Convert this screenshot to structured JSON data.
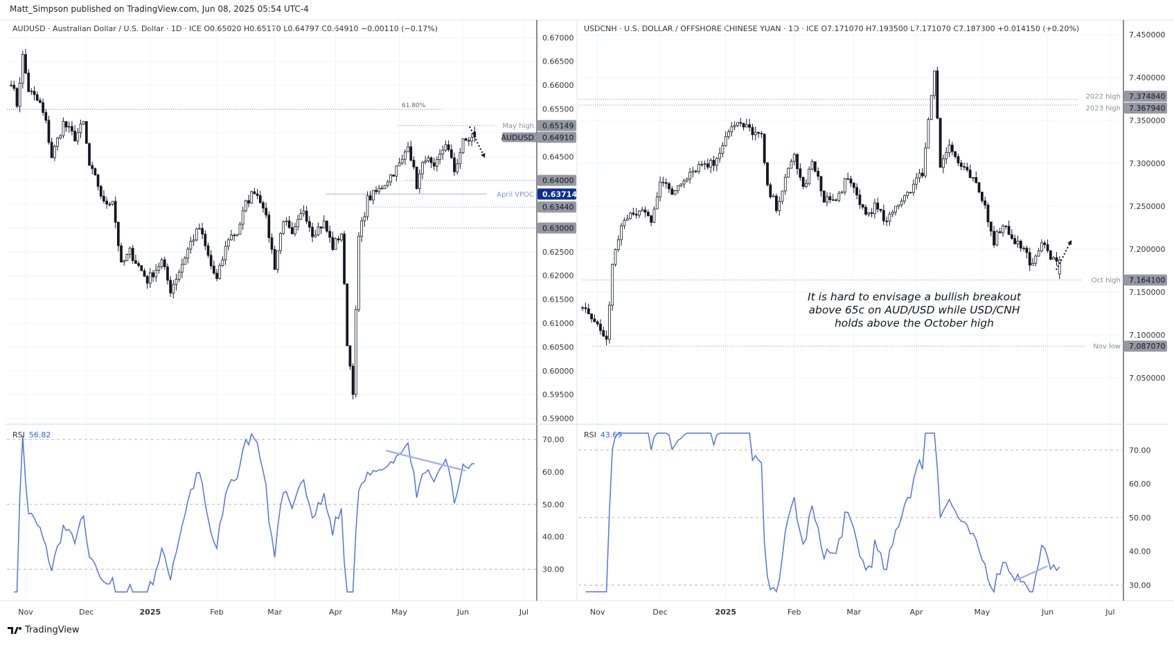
{
  "header": {
    "published": "Matt_Simpson published on TradingView.com, Jun 08, 2025 05:54 UTC-4"
  },
  "footer": {
    "brand": "TradingView",
    "logo_icon": "tradingview-logo-icon"
  },
  "candle_colors": {
    "up_fill": "#ffffff",
    "down_fill": "#131722",
    "border": "#131722"
  },
  "rsi_color": "#4f73e3",
  "trendline_color": "#a9b4ea",
  "left": {
    "legend": "AUDUSD · Australian Dollar / U.S. Dollar · 1D · ICE  O0.65020  H0.65170  L0.64797  C0.64910  −0.00110 (−0.17%)",
    "price_ticks": [
      "0.67000",
      "0.66500",
      "0.66000",
      "0.65500",
      "0.65000",
      "0.64500",
      "0.64000",
      "0.63500",
      "0.63000",
      "0.62500",
      "0.62000",
      "0.61500",
      "0.61000",
      "0.60500",
      "0.60000",
      "0.59500",
      "0.59000"
    ],
    "price_range": [
      0.5895,
      0.6715
    ],
    "labels": [
      {
        "text": "0.65149",
        "value": 0.65149,
        "tag": "May high",
        "style": "grey"
      },
      {
        "text": "0.64910",
        "value": 0.6491,
        "tag": "AUDUSD",
        "style": "grey"
      },
      {
        "text": "0.64000",
        "value": 0.64,
        "tag": "",
        "style": "grey"
      },
      {
        "text": "0.63714",
        "value": 0.63714,
        "tag": "April VPOC",
        "style": "blue"
      },
      {
        "text": "0.63440",
        "value": 0.6344,
        "tag": "",
        "style": "grey"
      },
      {
        "text": "0.63000",
        "value": 0.63,
        "tag": "",
        "style": "grey"
      }
    ],
    "fib": {
      "text": "61.80%",
      "value": 0.6549
    },
    "rsi": {
      "label": "RSI",
      "value": "56.82",
      "ticks": [
        "70.00",
        "60.00",
        "50.00",
        "40.00",
        "30.00"
      ],
      "range": [
        22,
        73
      ]
    },
    "time_labels": [
      "Nov",
      "Dec",
      "2025",
      "Feb",
      "Mar",
      "Apr",
      "May",
      "Jun",
      "Jul"
    ],
    "path": [
      [
        "2024-10-25",
        0.661
      ],
      [
        "2024-10-29",
        0.656
      ],
      [
        "2024-10-31",
        0.666
      ],
      [
        "2024-11-04",
        0.659
      ],
      [
        "2024-11-08",
        0.656
      ],
      [
        "2024-11-12",
        0.652
      ],
      [
        "2024-11-14",
        0.645
      ],
      [
        "2024-11-20",
        0.652
      ],
      [
        "2024-11-26",
        0.649
      ],
      [
        "2024-11-29",
        0.652
      ],
      [
        "2024-12-03",
        0.643
      ],
      [
        "2024-12-06",
        0.639
      ],
      [
        "2024-12-10",
        0.635
      ],
      [
        "2024-12-13",
        0.636
      ],
      [
        "2024-12-18",
        0.622
      ],
      [
        "2024-12-23",
        0.625
      ],
      [
        "2024-12-31",
        0.619
      ],
      [
        "2025-01-07",
        0.623
      ],
      [
        "2025-01-10",
        0.617
      ],
      [
        "2025-01-15",
        0.621
      ],
      [
        "2025-01-21",
        0.627
      ],
      [
        "2025-01-24",
        0.63
      ],
      [
        "2025-01-30",
        0.622
      ],
      [
        "2025-02-03",
        0.619
      ],
      [
        "2025-02-07",
        0.628
      ],
      [
        "2025-02-12",
        0.629
      ],
      [
        "2025-02-17",
        0.635
      ],
      [
        "2025-02-20",
        0.638
      ],
      [
        "2025-02-25",
        0.635
      ],
      [
        "2025-03-03",
        0.622
      ],
      [
        "2025-03-06",
        0.632
      ],
      [
        "2025-03-11",
        0.628
      ],
      [
        "2025-03-17",
        0.634
      ],
      [
        "2025-03-20",
        0.629
      ],
      [
        "2025-03-26",
        0.631
      ],
      [
        "2025-03-31",
        0.626
      ],
      [
        "2025-04-03",
        0.629
      ],
      [
        "2025-04-07",
        0.606
      ],
      [
        "2025-04-09",
        0.596
      ],
      [
        "2025-04-11",
        0.628
      ],
      [
        "2025-04-16",
        0.636
      ],
      [
        "2025-04-22",
        0.638
      ],
      [
        "2025-04-28",
        0.641
      ],
      [
        "2025-05-02",
        0.644
      ],
      [
        "2025-05-06",
        0.648
      ],
      [
        "2025-05-09",
        0.639
      ],
      [
        "2025-05-14",
        0.645
      ],
      [
        "2025-05-19",
        0.642
      ],
      [
        "2025-05-23",
        0.648
      ],
      [
        "2025-05-28",
        0.642
      ],
      [
        "2025-06-02",
        0.648
      ],
      [
        "2025-06-06",
        0.6491
      ]
    ]
  },
  "right": {
    "legend": "USDCNH · U.S. DOLLAR / OFFSHORE CHINESE YUAN · 1D · ICE  O7.171070  H7.193500  L7.171070  C7.187300  +0.014150 (+0.20%)",
    "price_ticks": [
      "7.450000",
      "7.400000",
      "7.350000",
      "7.300000",
      "7.250000",
      "7.200000",
      "7.150000",
      "7.100000",
      "7.050000"
    ],
    "price_range": [
      7.0,
      7.455
    ],
    "labels": [
      {
        "text": "7.374840",
        "value": 7.37484,
        "tag": "2022 high",
        "style": "grey"
      },
      {
        "text": "7.367940",
        "value": 7.36794,
        "tag": "2023 high",
        "style": "grey"
      },
      {
        "text": "7.164100",
        "value": 7.1641,
        "tag": "Oct high",
        "style": "grey"
      },
      {
        "text": "7.087070",
        "value": 7.08707,
        "tag": "Nov low",
        "style": "grey"
      }
    ],
    "note": "It is hard to envisage a bullish breakout above 65c on AUD/USD while USD/CNH holds above the October high",
    "rsi": {
      "label": "RSI",
      "value": "43.69",
      "ticks": [
        "70.00",
        "60.00",
        "50.00",
        "40.00",
        "30.00"
      ],
      "range": [
        27,
        76
      ]
    },
    "time_labels": [
      "Nov",
      "Dec",
      "2025",
      "Feb",
      "Mar",
      "Apr",
      "May",
      "Jun",
      "Jul"
    ],
    "path": [
      [
        "2024-10-25",
        7.135
      ],
      [
        "2024-10-30",
        7.12
      ],
      [
        "2024-11-04",
        7.105
      ],
      [
        "2024-11-06",
        7.095
      ],
      [
        "2024-11-08",
        7.18
      ],
      [
        "2024-11-13",
        7.23
      ],
      [
        "2024-11-19",
        7.24
      ],
      [
        "2024-11-22",
        7.245
      ],
      [
        "2024-11-27",
        7.235
      ],
      [
        "2024-12-02",
        7.28
      ],
      [
        "2024-12-06",
        7.265
      ],
      [
        "2024-12-11",
        7.28
      ],
      [
        "2024-12-16",
        7.29
      ],
      [
        "2024-12-20",
        7.3
      ],
      [
        "2024-12-26",
        7.3
      ],
      [
        "2025-01-02",
        7.34
      ],
      [
        "2025-01-07",
        7.345
      ],
      [
        "2025-01-13",
        7.34
      ],
      [
        "2025-01-17",
        7.33
      ],
      [
        "2025-01-21",
        7.27
      ],
      [
        "2025-01-24",
        7.25
      ],
      [
        "2025-01-29",
        7.28
      ],
      [
        "2025-02-03",
        7.31
      ],
      [
        "2025-02-06",
        7.27
      ],
      [
        "2025-02-11",
        7.3
      ],
      [
        "2025-02-17",
        7.26
      ],
      [
        "2025-02-21",
        7.255
      ],
      [
        "2025-02-26",
        7.28
      ],
      [
        "2025-03-03",
        7.27
      ],
      [
        "2025-03-07",
        7.24
      ],
      [
        "2025-03-12",
        7.25
      ],
      [
        "2025-03-18",
        7.23
      ],
      [
        "2025-03-24",
        7.255
      ],
      [
        "2025-03-31",
        7.275
      ],
      [
        "2025-04-03",
        7.29
      ],
      [
        "2025-04-07",
        7.35
      ],
      [
        "2025-04-09",
        7.41
      ],
      [
        "2025-04-11",
        7.3
      ],
      [
        "2025-04-16",
        7.32
      ],
      [
        "2025-04-22",
        7.295
      ],
      [
        "2025-04-28",
        7.28
      ],
      [
        "2025-05-02",
        7.25
      ],
      [
        "2025-05-07",
        7.21
      ],
      [
        "2025-05-12",
        7.23
      ],
      [
        "2025-05-16",
        7.21
      ],
      [
        "2025-05-21",
        7.2
      ],
      [
        "2025-05-26",
        7.18
      ],
      [
        "2025-05-30",
        7.21
      ],
      [
        "2025-06-04",
        7.185
      ],
      [
        "2025-06-06",
        7.1873
      ]
    ]
  }
}
